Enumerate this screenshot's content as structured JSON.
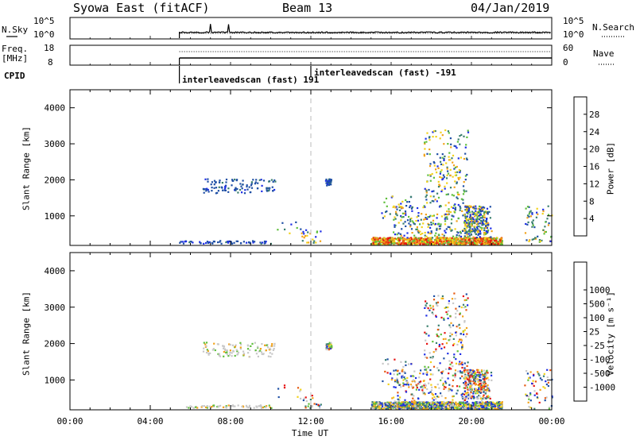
{
  "header": {
    "station": "Syowa East (fitACF)",
    "beam": "Beam 13",
    "date": "04/Jan/2019"
  },
  "top_panels": {
    "nsky_label": "N.Sky",
    "nsearch_label": "N.Search",
    "freq_label_1": "Freq.",
    "freq_label_2": "[MHz]",
    "nave_label": "Nave",
    "cpid_label": "CPID",
    "left_ticks_noise": [
      "10^5",
      "10^0"
    ],
    "right_ticks_noise": [
      "10^5",
      "10^0"
    ],
    "left_ticks_freq": [
      "18",
      "8"
    ],
    "right_ticks_nave": [
      "60",
      "0"
    ],
    "cpid_modes": [
      "interleavedscan (fast) 191",
      "interleavedscan (fast) -191"
    ]
  },
  "colors": {
    "power_scale": [
      "#1e2ee6",
      "#1f4fa5",
      "#3a7f6e",
      "#5fbf3c",
      "#f2d21a",
      "#f2a21a",
      "#e65a12",
      "#e61212"
    ],
    "velocity_scale": [
      "#e61212",
      "#e65a12",
      "#f2a21a",
      "#f2d21a",
      "#c8c8c8",
      "#c8c8c8",
      "#5fbf3c",
      "#3a7f6e",
      "#1f4fa5",
      "#1e2ee6"
    ]
  },
  "chart_data": [
    {
      "type": "heatmap",
      "name": "power",
      "ylabel": "Slant Range [km]",
      "y_ticks": [
        1000,
        2000,
        3000,
        4000
      ],
      "ylim": [
        180,
        4500
      ],
      "colorbar_label": "Power [dB]",
      "colorbar_ticks": [
        "4",
        "8",
        "12",
        "16",
        "20",
        "24",
        "28"
      ]
    },
    {
      "type": "heatmap",
      "name": "velocity",
      "ylabel": "Slant Range [km]",
      "y_ticks": [
        1000,
        2000,
        3000,
        4000
      ],
      "ylim": [
        180,
        4500
      ],
      "colorbar_label": "Velocity [m s⁻¹]",
      "colorbar_ticks": [
        "-1000",
        "-500",
        "-100",
        "-25",
        "25",
        "100",
        "500",
        "1000"
      ]
    }
  ],
  "x_axis": {
    "xlabel": "Time UT",
    "ticks": [
      "00:00",
      "04:00",
      "08:00",
      "12:00",
      "16:00",
      "20:00",
      "00:00"
    ],
    "xlim_hours": [
      0,
      24
    ]
  }
}
